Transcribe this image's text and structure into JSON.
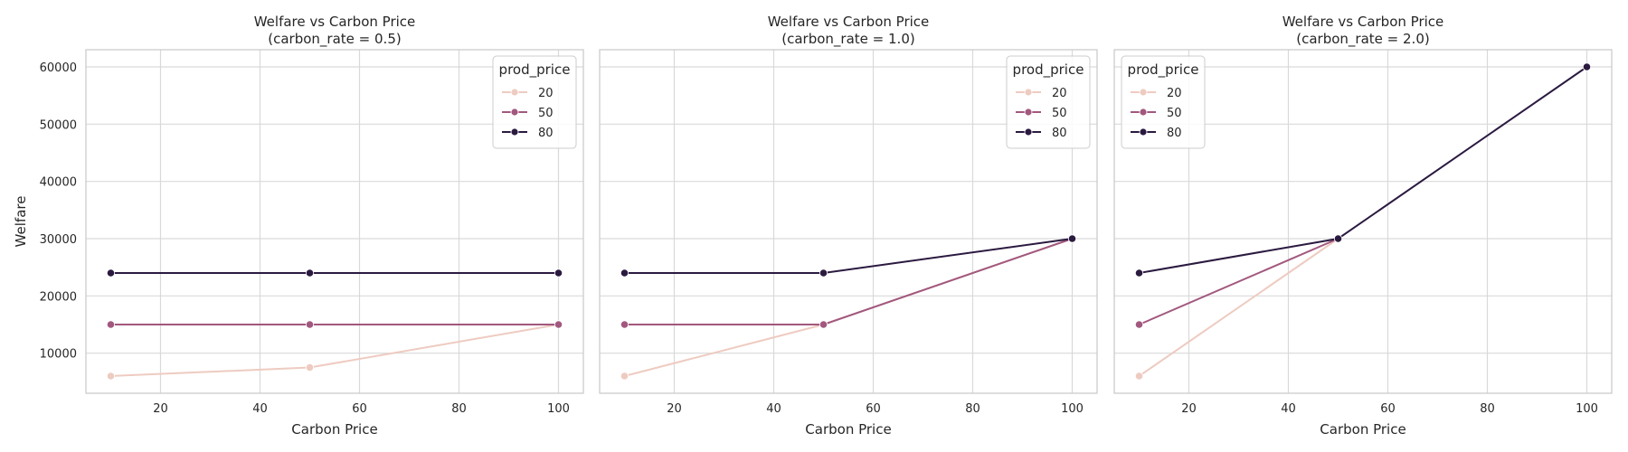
{
  "chart_data": [
    {
      "type": "line",
      "title": "Welfare vs Carbon Price",
      "subtitle": "(carbon_rate = 0.5)",
      "xlabel": "Carbon Price",
      "ylabel": "Welfare",
      "xlim": [
        5,
        105
      ],
      "ylim": [
        3000,
        63000
      ],
      "xticks": [
        "20",
        "40",
        "60",
        "80",
        "100"
      ],
      "yticks": [
        "10000",
        "20000",
        "30000",
        "40000",
        "50000",
        "60000"
      ],
      "grid": true,
      "legend": {
        "title": "prod_price",
        "placement": "top-right"
      },
      "series": [
        {
          "name": "20",
          "color": "#eecbc1",
          "x": [
            10,
            50,
            100
          ],
          "y": [
            6000,
            7500,
            15000
          ]
        },
        {
          "name": "50",
          "color": "#a2587e",
          "x": [
            10,
            50,
            100
          ],
          "y": [
            15000,
            15000,
            15000
          ]
        },
        {
          "name": "80",
          "color": "#2b1a40",
          "x": [
            10,
            50,
            100
          ],
          "y": [
            24000,
            24000,
            24000
          ]
        }
      ]
    },
    {
      "type": "line",
      "title": "Welfare vs Carbon Price",
      "subtitle": "(carbon_rate = 1.0)",
      "xlabel": "Carbon Price",
      "ylabel": "",
      "xlim": [
        5,
        105
      ],
      "ylim": [
        3000,
        63000
      ],
      "xticks": [
        "20",
        "40",
        "60",
        "80",
        "100"
      ],
      "yticks": [],
      "grid": true,
      "legend": {
        "title": "prod_price",
        "placement": "top-right"
      },
      "series": [
        {
          "name": "20",
          "color": "#eecbc1",
          "x": [
            10,
            50,
            100
          ],
          "y": [
            6000,
            15000,
            30000
          ]
        },
        {
          "name": "50",
          "color": "#a2587e",
          "x": [
            10,
            50,
            100
          ],
          "y": [
            15000,
            15000,
            30000
          ]
        },
        {
          "name": "80",
          "color": "#2b1a40",
          "x": [
            10,
            50,
            100
          ],
          "y": [
            24000,
            24000,
            30000
          ]
        }
      ]
    },
    {
      "type": "line",
      "title": "Welfare vs Carbon Price",
      "subtitle": "(carbon_rate = 2.0)",
      "xlabel": "Carbon Price",
      "ylabel": "",
      "xlim": [
        5,
        105
      ],
      "ylim": [
        3000,
        63000
      ],
      "xticks": [
        "20",
        "40",
        "60",
        "80",
        "100"
      ],
      "yticks": [],
      "grid": true,
      "legend": {
        "title": "prod_price",
        "placement": "top-left"
      },
      "series": [
        {
          "name": "20",
          "color": "#eecbc1",
          "x": [
            10,
            50
          ],
          "y": [
            6000,
            30000
          ]
        },
        {
          "name": "50",
          "color": "#a2587e",
          "x": [
            10,
            50
          ],
          "y": [
            15000,
            30000
          ]
        },
        {
          "name": "80",
          "color": "#2b1a40",
          "x": [
            10,
            50,
            100
          ],
          "y": [
            24000,
            30000,
            60000
          ]
        }
      ]
    }
  ]
}
